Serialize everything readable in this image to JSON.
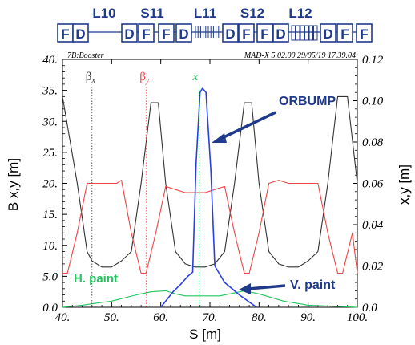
{
  "lattice": {
    "section_labels": [
      "L10",
      "S11",
      "L11",
      "S12",
      "L12"
    ],
    "elements": [
      "F",
      "D",
      "D",
      "F",
      "F",
      "D",
      "D",
      "F",
      "F",
      "D",
      "D",
      "F",
      "F"
    ]
  },
  "header": {
    "left": "7B:Booster",
    "right": "MAD-X 5.02.00  29/05/19 17.39.04"
  },
  "chart_data": {
    "type": "line",
    "xlabel": "S [m]",
    "ylabel_left": "B x,y [m]",
    "ylabel_right": "x,y [m]",
    "xlim": [
      40,
      100
    ],
    "ylim_left": [
      0,
      40
    ],
    "ylim_right": [
      0,
      0.12
    ],
    "x_ticks": [
      "40.",
      "50.",
      "60.",
      "70.",
      "80.",
      "90.",
      "100."
    ],
    "y_left_ticks": [
      "0.0",
      "5.0",
      "10.",
      "15.",
      "20.",
      "25.",
      "30.",
      "35.",
      "40."
    ],
    "y_right_ticks": [
      "0.0",
      "0.02",
      "0.04",
      "0.06",
      "0.08",
      "0.10",
      "0.12"
    ],
    "series": [
      {
        "name": "βx",
        "axis": "left",
        "color": "#333333",
        "points": [
          [
            40,
            34
          ],
          [
            43,
            20
          ],
          [
            45,
            9
          ],
          [
            46,
            7.5
          ],
          [
            48,
            6.5
          ],
          [
            50,
            6.5
          ],
          [
            52,
            7.5
          ],
          [
            54,
            9
          ],
          [
            56,
            20
          ],
          [
            58,
            33
          ],
          [
            59.5,
            33
          ],
          [
            61,
            20
          ],
          [
            63,
            9
          ],
          [
            65,
            7
          ],
          [
            67,
            6.5
          ],
          [
            69,
            6.5
          ],
          [
            71,
            7
          ],
          [
            73,
            9
          ],
          [
            75,
            20
          ],
          [
            77,
            33
          ],
          [
            78.5,
            33
          ],
          [
            80,
            20
          ],
          [
            82,
            9
          ],
          [
            84,
            7
          ],
          [
            86,
            6.5
          ],
          [
            88,
            6.5
          ],
          [
            90,
            7.5
          ],
          [
            92,
            9
          ],
          [
            94,
            20
          ],
          [
            96,
            34
          ],
          [
            98,
            34
          ],
          [
            100,
            20
          ]
        ]
      },
      {
        "name": "βy",
        "axis": "left",
        "color": "#ef4444",
        "points": [
          [
            40,
            5.5
          ],
          [
            41,
            5.5
          ],
          [
            43,
            12
          ],
          [
            45,
            20
          ],
          [
            47,
            20
          ],
          [
            49,
            20
          ],
          [
            51,
            20
          ],
          [
            52,
            20.5
          ],
          [
            54,
            12
          ],
          [
            56,
            5.5
          ],
          [
            57,
            5.5
          ],
          [
            59,
            12
          ],
          [
            61,
            19.5
          ],
          [
            63,
            19
          ],
          [
            65,
            18.5
          ],
          [
            67,
            18.5
          ],
          [
            69,
            18.5
          ],
          [
            71,
            19
          ],
          [
            73,
            19.5
          ],
          [
            75,
            12
          ],
          [
            77,
            5.5
          ],
          [
            78,
            5.5
          ],
          [
            80,
            12
          ],
          [
            82,
            20
          ],
          [
            84,
            20.5
          ],
          [
            86,
            20
          ],
          [
            88,
            20
          ],
          [
            90,
            20
          ],
          [
            92,
            20
          ],
          [
            94,
            12
          ],
          [
            96,
            5.5
          ],
          [
            97,
            5.5
          ],
          [
            99,
            12
          ],
          [
            100,
            5.5
          ]
        ]
      },
      {
        "name": "x",
        "axis": "right",
        "color": "#22c55e",
        "points": [
          [
            40,
            0
          ],
          [
            44,
            0.001
          ],
          [
            50,
            0.003
          ],
          [
            55,
            0.006
          ],
          [
            58,
            0.0075
          ],
          [
            61,
            0.008
          ],
          [
            63,
            0.0065
          ],
          [
            65,
            0.0055
          ],
          [
            72,
            0.0055
          ],
          [
            74,
            0.0065
          ],
          [
            77,
            0.008
          ],
          [
            80,
            0.0065
          ],
          [
            85,
            0.003
          ],
          [
            90,
            0.001
          ],
          [
            95,
            0.0005
          ],
          [
            100,
            0
          ]
        ]
      },
      {
        "name": "ORBUMP",
        "axis": "right",
        "color": "#2b3fe0",
        "points": [
          [
            60,
            0
          ],
          [
            62.5,
            0.0075
          ],
          [
            64,
            0.011
          ],
          [
            65.5,
            0.015
          ],
          [
            66.5,
            0.017
          ],
          [
            67.2,
            0.07
          ],
          [
            68,
            0.104
          ],
          [
            68.5,
            0.106
          ],
          [
            69.2,
            0.104
          ],
          [
            70.2,
            0.066
          ],
          [
            71,
            0.02
          ],
          [
            73,
            0.012
          ],
          [
            74.5,
            0.009
          ],
          [
            76,
            0.006
          ],
          [
            79.5,
            0
          ]
        ]
      }
    ],
    "markers": [
      {
        "series": "βx",
        "x": 46
      },
      {
        "series": "βy",
        "x": 57
      },
      {
        "series": "x",
        "x": 67.8
      }
    ],
    "annotations": {
      "orbump": "ORBUMP",
      "h_paint": "H. paint",
      "v_paint": "V. paint"
    }
  }
}
